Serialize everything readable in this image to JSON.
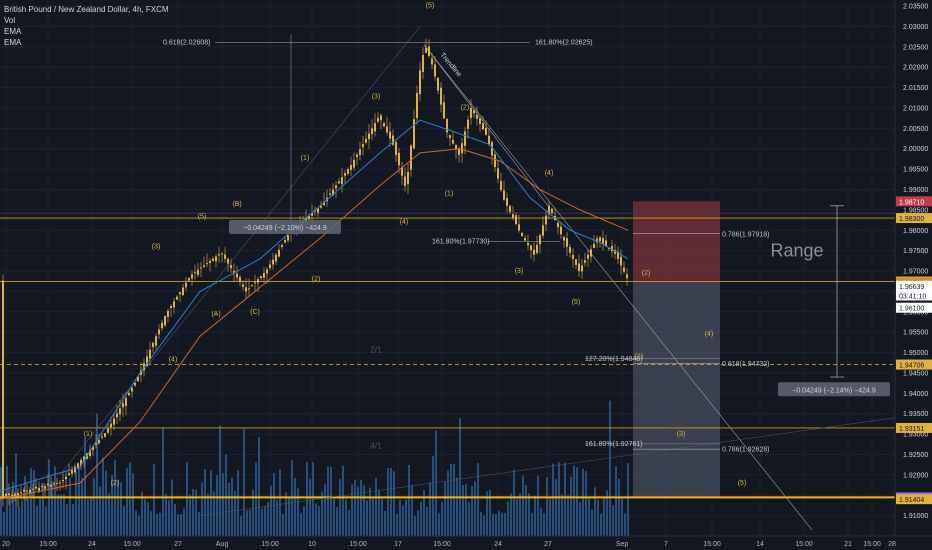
{
  "legend": {
    "title": "British Pound / New Zealand Dollar, 4h, FXCM",
    "ind1": "Vol",
    "ind2": "EMA",
    "ind3": "EMA"
  },
  "colors": {
    "bg": "#131722",
    "candle": "#e0b341",
    "ema_fast": "#2d7fd1",
    "ema_slow": "#d2662a",
    "volume": "#2b5a8f",
    "hline": "#d4a017",
    "risk": "#a33a44",
    "reward": "#5b6076",
    "text": "#d1d4dc"
  },
  "chart_data": {
    "type": "candlestick",
    "symbol": "British Pound / New Zealand Dollar",
    "interval": "4h",
    "source": "FXCM",
    "ylim": [
      1.905,
      2.036
    ],
    "y_ticks": [
      "2.03500",
      "2.03000",
      "2.02500",
      "2.02000",
      "2.01500",
      "2.01000",
      "2.00500",
      "2.00000",
      "1.99500",
      "1.99000",
      "1.98500",
      "1.98000",
      "1.97500",
      "1.97000",
      "1.96500",
      "1.96000",
      "1.95500",
      "1.95000",
      "1.94500",
      "1.94000",
      "1.93500",
      "1.93000",
      "1.92500",
      "1.92000",
      "1.91500",
      "1.91000"
    ],
    "x_ticks": [
      "20",
      "15:00",
      "24",
      "15:00",
      "27",
      "Aug",
      "15:00",
      "10",
      "15:00",
      "17",
      "15:00",
      "24",
      "27",
      "Sep",
      "7",
      "15:00",
      "14",
      "15:00",
      "21",
      "15:00",
      "28"
    ],
    "price_path": [
      [
        0,
        1.9145
      ],
      [
        60,
        1.9182
      ],
      [
        105,
        1.9305
      ],
      [
        135,
        1.943
      ],
      [
        165,
        1.9595
      ],
      [
        190,
        1.969
      ],
      [
        220,
        1.9745
      ],
      [
        245,
        1.965
      ],
      [
        265,
        1.97
      ],
      [
        290,
        1.98
      ],
      [
        320,
        1.986
      ],
      [
        350,
        1.996
      ],
      [
        378,
        2.008
      ],
      [
        392,
        2.001
      ],
      [
        405,
        1.99
      ],
      [
        418,
        2.018
      ],
      [
        424,
        2.0255
      ],
      [
        432,
        2.02
      ],
      [
        446,
        2.004
      ],
      [
        458,
        1.9985
      ],
      [
        470,
        2.01
      ],
      [
        486,
        2.003
      ],
      [
        502,
        1.988
      ],
      [
        520,
        1.979
      ],
      [
        533,
        1.974
      ],
      [
        548,
        1.986
      ],
      [
        560,
        1.979
      ],
      [
        578,
        1.97
      ],
      [
        596,
        1.978
      ],
      [
        615,
        1.974
      ],
      [
        628,
        1.9672
      ]
    ],
    "ema_fast": [
      [
        0,
        1.916
      ],
      [
        80,
        1.922
      ],
      [
        140,
        1.945
      ],
      [
        200,
        1.965
      ],
      [
        260,
        1.973
      ],
      [
        320,
        1.986
      ],
      [
        380,
        1.999
      ],
      [
        420,
        2.007
      ],
      [
        450,
        2.0045
      ],
      [
        490,
        2.001
      ],
      [
        530,
        1.988
      ],
      [
        570,
        1.98
      ],
      [
        600,
        1.977
      ],
      [
        628,
        1.973
      ]
    ],
    "ema_slow": [
      [
        0,
        1.914
      ],
      [
        80,
        1.918
      ],
      [
        140,
        1.933
      ],
      [
        200,
        1.954
      ],
      [
        260,
        1.966
      ],
      [
        320,
        1.978
      ],
      [
        380,
        1.991
      ],
      [
        420,
        1.999
      ],
      [
        460,
        2.0
      ],
      [
        500,
        1.997
      ],
      [
        540,
        1.99
      ],
      [
        580,
        1.985
      ],
      [
        628,
        1.98
      ]
    ],
    "volume_seed": 17,
    "horizontal_lines": [
      {
        "price": 1.983,
        "label": "1.98300",
        "color": "#d4a017"
      },
      {
        "price": 1.96742,
        "label": "1.96742",
        "color": "#d4a017"
      },
      {
        "price": 1.94706,
        "label": "1.94706",
        "color": "#d4a017",
        "dashed": true
      },
      {
        "price": 1.93151,
        "label": "1.93151",
        "color": "#d4a017"
      },
      {
        "price": 1.91447,
        "label": "1.91447",
        "color": "#f0b90b",
        "thick": true
      }
    ],
    "price_labels": [
      {
        "price": 1.9871,
        "label": "1.98710",
        "bg": "#c23b4a",
        "fg": "#ffffff"
      },
      {
        "price": 1.983,
        "label": "1.98300",
        "bg": "#e0b341",
        "fg": "#131722"
      },
      {
        "price": 1.96742,
        "label": "1.96742",
        "bg": "#e0b341",
        "fg": "#131722"
      },
      {
        "price": 1.96716,
        "label": "1.96716",
        "bg": "#e08a1e",
        "fg": "#131722"
      },
      {
        "price": 1.96639,
        "label": "1.96639",
        "bg": "#ffffff",
        "fg": "#131722"
      },
      {
        "price": 1.964,
        "label": "03:41:10",
        "bg": "#ffffff",
        "fg": "#131722"
      },
      {
        "price": 1.961,
        "label": "1.96100",
        "bg": "#ffffff",
        "fg": "#131722"
      },
      {
        "price": 1.94706,
        "label": "1.94706",
        "bg": "#e0b341",
        "fg": "#131722"
      },
      {
        "price": 1.93151,
        "label": "1.93151",
        "bg": "#e0b341",
        "fg": "#131722"
      },
      {
        "price": 1.91447,
        "label": "1.91447",
        "bg": "#a86bd6",
        "fg": "#ffffff"
      },
      {
        "price": 1.91404,
        "label": "1.91404",
        "bg": "#e0b341",
        "fg": "#131722"
      }
    ],
    "fib_labels": [
      {
        "x": 163,
        "price": 2.0261,
        "text": "0.618(2.02608)",
        "anchor": "start"
      },
      {
        "x": 535,
        "price": 2.0261,
        "text": "161.80%(2.02625)",
        "anchor": "start"
      },
      {
        "x": 432,
        "price": 1.9772,
        "text": "161.80%(1.97730)",
        "anchor": "start"
      },
      {
        "x": 722,
        "price": 1.979,
        "text": "0.786(1.97918)",
        "anchor": "start"
      },
      {
        "x": 585,
        "price": 1.9484,
        "text": "127.20%(1.94846)",
        "anchor": "start"
      },
      {
        "x": 722,
        "price": 1.9472,
        "text": "0.618(1.94732)",
        "anchor": "start"
      },
      {
        "x": 585,
        "price": 1.9276,
        "text": "161.80%(1.92761)",
        "anchor": "start"
      },
      {
        "x": 722,
        "price": 1.9262,
        "text": "0.786(1.92628)",
        "anchor": "start"
      }
    ],
    "wave_labels": [
      {
        "x": 430,
        "price": 2.0352,
        "text": "(5)"
      },
      {
        "x": 376,
        "price": 2.0128,
        "text": "(3)"
      },
      {
        "x": 465,
        "price": 2.0101,
        "text": "(2)"
      },
      {
        "x": 305,
        "price": 1.9977,
        "text": "(1)"
      },
      {
        "x": 449,
        "price": 1.989,
        "text": "(1)"
      },
      {
        "x": 237,
        "price": 1.9865,
        "text": "(B)"
      },
      {
        "x": 202,
        "price": 1.9834,
        "text": "(5)"
      },
      {
        "x": 404,
        "price": 1.982,
        "text": "(4)"
      },
      {
        "x": 549,
        "price": 1.994,
        "text": "(4)"
      },
      {
        "x": 156,
        "price": 1.976,
        "text": "(3)"
      },
      {
        "x": 519,
        "price": 1.97,
        "text": "(3)"
      },
      {
        "x": 646,
        "price": 1.9695,
        "text": "(2)"
      },
      {
        "x": 316,
        "price": 1.968,
        "text": "(2)"
      },
      {
        "x": 576,
        "price": 1.9624,
        "text": "(5)"
      },
      {
        "x": 216,
        "price": 1.9595,
        "text": "(A)"
      },
      {
        "x": 255,
        "price": 1.96,
        "text": "(C)"
      },
      {
        "x": 173,
        "price": 1.9483,
        "text": "(4)"
      },
      {
        "x": 709,
        "price": 1.9545,
        "text": "(4)"
      },
      {
        "x": 639,
        "price": 1.949,
        "text": "(1)"
      },
      {
        "x": 88,
        "price": 1.93,
        "text": "(1)"
      },
      {
        "x": 681,
        "price": 1.93,
        "text": "(3)"
      },
      {
        "x": 115,
        "price": 1.918,
        "text": "(2)"
      },
      {
        "x": 742,
        "price": 1.918,
        "text": "(5)"
      }
    ],
    "annotations": [
      {
        "text": "Trendline",
        "x": 440,
        "price": 2.023
      },
      {
        "text": "Range",
        "x": 797,
        "price": 1.975
      },
      {
        "text": "−0.04249 (−2.10%) −424.9",
        "x": 285,
        "price": 1.9808
      },
      {
        "text": "−0.04249 (−2.14%) −424.9",
        "x": 834,
        "price": 1.941
      },
      {
        "text": "2/1",
        "x": 376,
        "price": 1.95
      },
      {
        "text": "4/1",
        "x": 376,
        "price": 1.9265
      }
    ],
    "position": {
      "x1": 633,
      "x2": 720,
      "stop": 1.9871,
      "entry": 1.96742,
      "target": 1.91447
    }
  }
}
